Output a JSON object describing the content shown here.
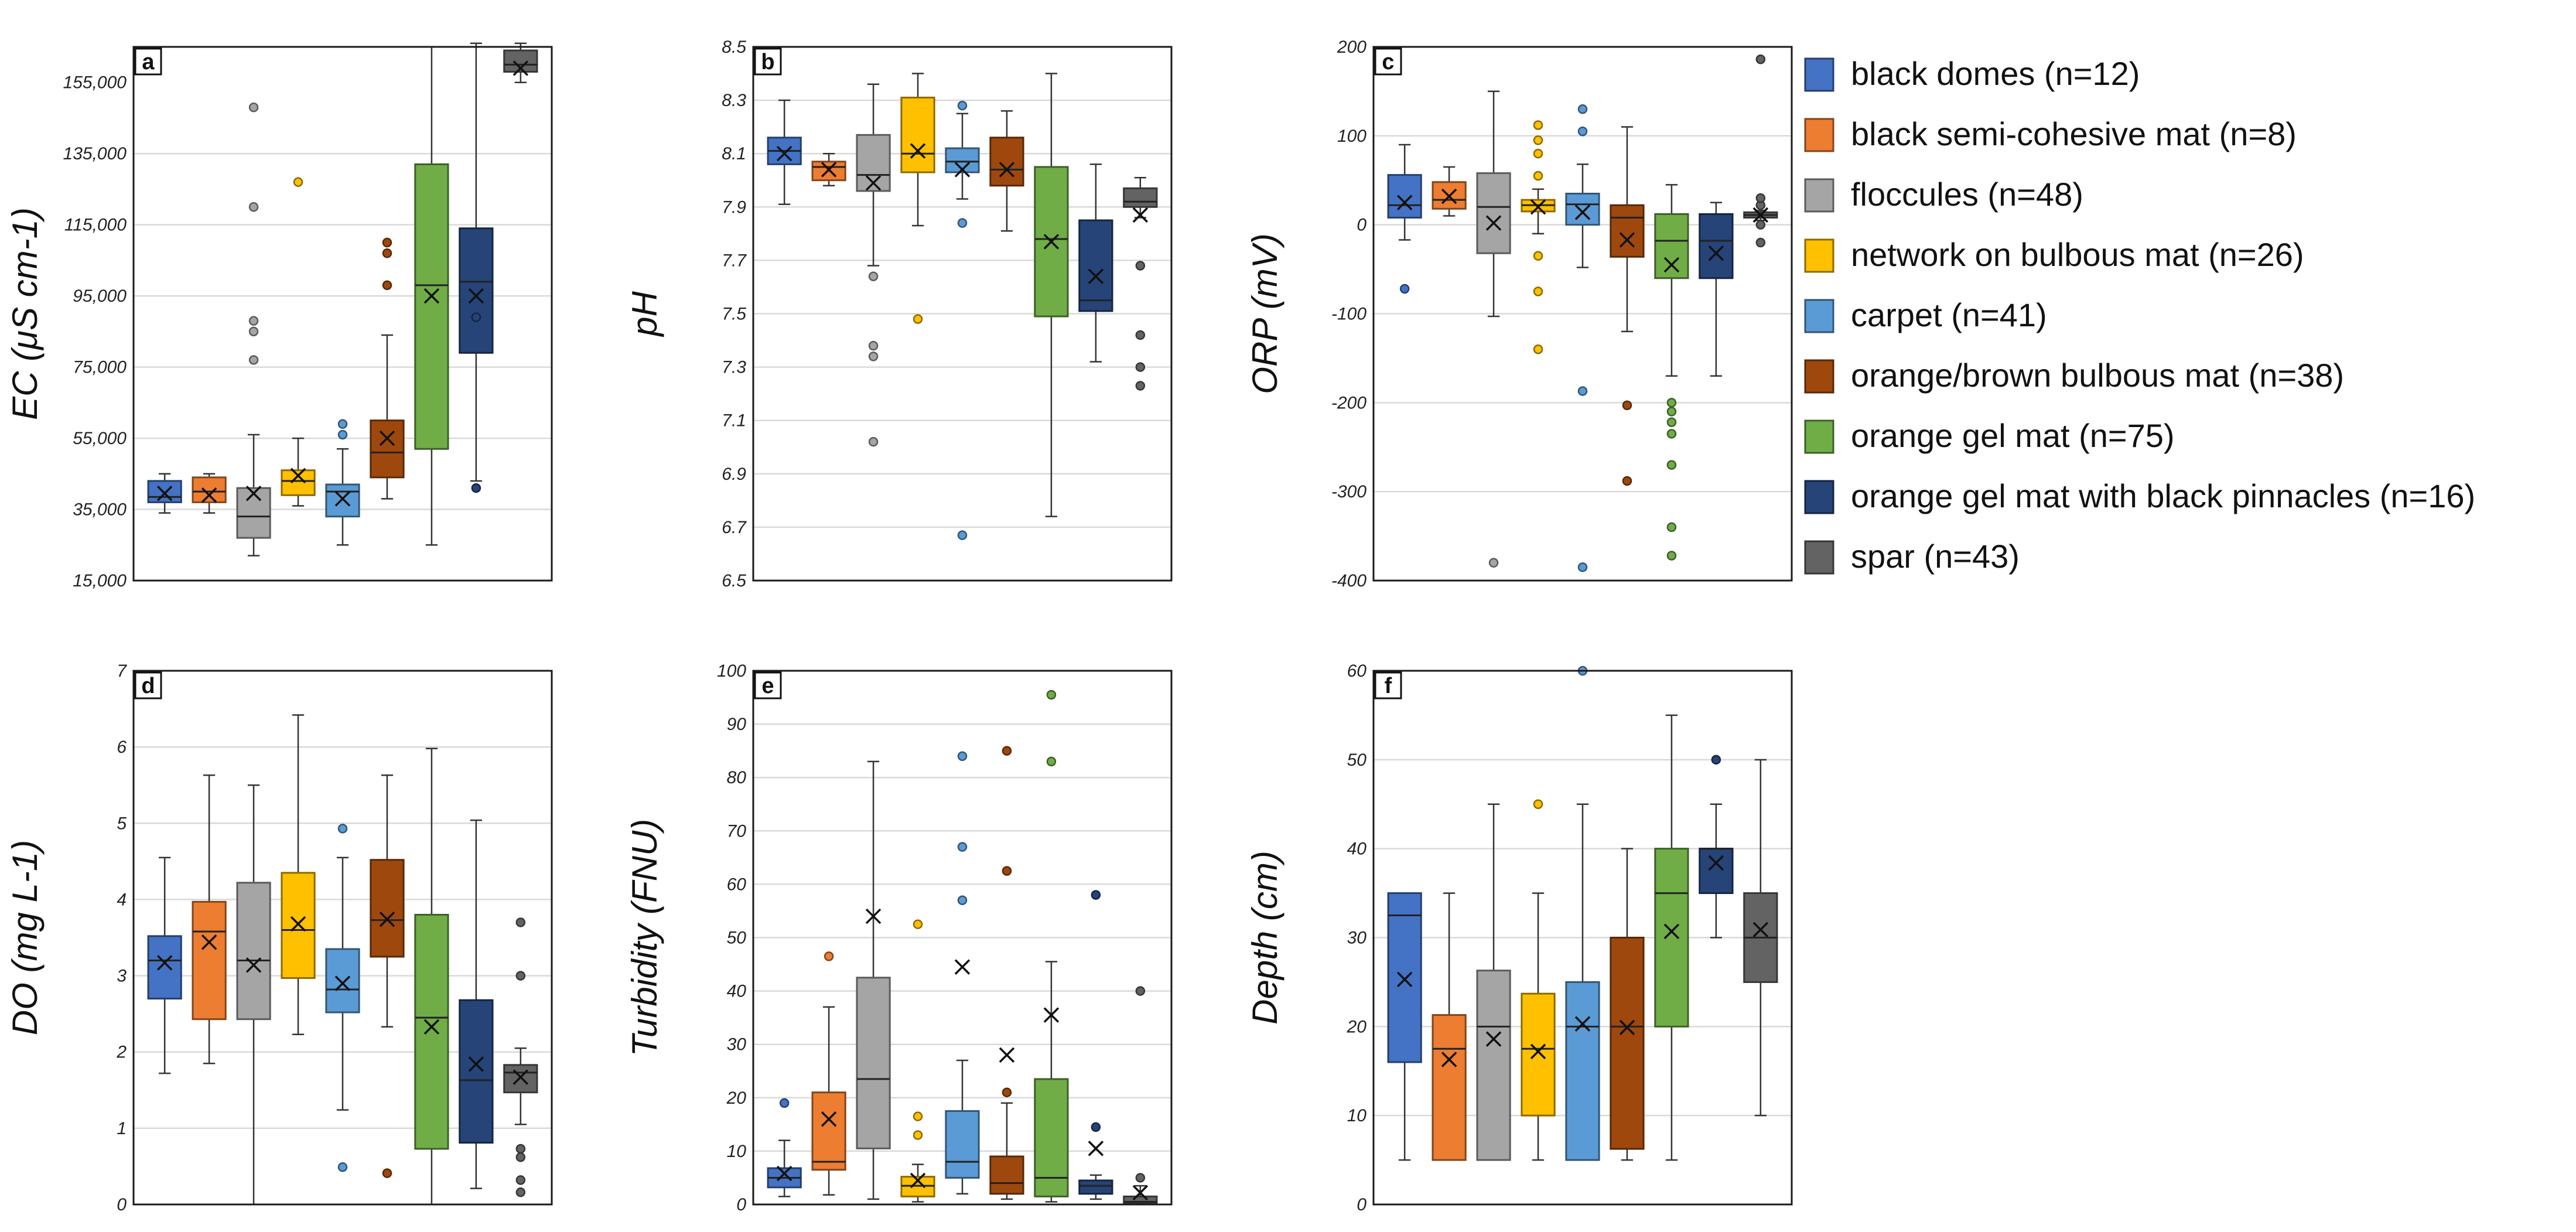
{
  "legend": {
    "items": [
      {
        "label": "black domes (n=12)",
        "color": "#4472C4"
      },
      {
        "label": "black semi-cohesive mat (n=8)",
        "color": "#ED7D31"
      },
      {
        "label": "floccules (n=48)",
        "color": "#A5A5A5"
      },
      {
        "label": "network on bulbous mat (n=26)",
        "color": "#FFC000"
      },
      {
        "label": "carpet (n=41)",
        "color": "#5B9BD5"
      },
      {
        "label": "orange/brown bulbous mat (n=38)",
        "color": "#9E480E"
      },
      {
        "label": "orange gel mat (n=75)",
        "color": "#70AD47"
      },
      {
        "label": "orange gel mat with black pinnacles (n=16)",
        "color": "#264478"
      },
      {
        "label": "spar (n=43)",
        "color": "#636363"
      }
    ]
  },
  "chart_data": [
    {
      "type": "box",
      "panel": "a",
      "ylabel": "EC (μS cm-1)",
      "ylim": [
        15000,
        165000
      ],
      "yticks": [
        15000,
        35000,
        55000,
        75000,
        95000,
        115000,
        135000,
        155000
      ],
      "ytick_labels": [
        "15,000",
        "35,000",
        "55,000",
        "75,000",
        "95,000",
        "115,000",
        "135,000",
        "155,000"
      ],
      "groups": [
        {
          "min": 34000,
          "q1": 37000,
          "median": 38500,
          "q3": 43000,
          "max": 45000,
          "mean": 39500,
          "outliers": []
        },
        {
          "min": 34000,
          "q1": 37000,
          "median": 40000,
          "q3": 44000,
          "max": 45000,
          "mean": 39000,
          "outliers": []
        },
        {
          "min": 22000,
          "q1": 27000,
          "median": 33000,
          "q3": 41000,
          "max": 56000,
          "mean": 39500,
          "outliers": [
            77000,
            85000,
            88000,
            120000,
            148000
          ]
        },
        {
          "min": 36000,
          "q1": 39000,
          "median": 43000,
          "q3": 46000,
          "max": 55000,
          "mean": 44500,
          "outliers": [
            127000
          ]
        },
        {
          "min": 25000,
          "q1": 33000,
          "median": 40000,
          "q3": 42000,
          "max": 52000,
          "mean": 38000,
          "outliers": [
            56000,
            59000
          ]
        },
        {
          "min": 38000,
          "q1": 44000,
          "median": 51000,
          "q3": 60000,
          "max": 84000,
          "mean": 55000,
          "outliers": [
            98000,
            107000,
            110000
          ]
        },
        {
          "min": 25000,
          "q1": 52000,
          "median": 98000,
          "q3": 132000,
          "max": 165000,
          "mean": 95000,
          "outliers": []
        },
        {
          "min": 43000,
          "q1": 79000,
          "median": 99000,
          "q3": 114000,
          "max": 166000,
          "mean": 95000,
          "outliers": [
            41000,
            89000
          ]
        },
        {
          "min": 155000,
          "q1": 158000,
          "median": 160000,
          "q3": 164000,
          "max": 166000,
          "mean": 159000,
          "outliers": []
        }
      ]
    },
    {
      "type": "box",
      "panel": "b",
      "ylabel": "pH",
      "ylim": [
        6.5,
        8.5
      ],
      "yticks": [
        6.5,
        6.7,
        6.9,
        7.1,
        7.3,
        7.5,
        7.7,
        7.9,
        8.1,
        8.3,
        8.5
      ],
      "ytick_labels": [
        "6.5",
        "6.7",
        "6.9",
        "7.1",
        "7.3",
        "7.5",
        "7.7",
        "7.9",
        "8.1",
        "8.3",
        "8.5"
      ],
      "groups": [
        {
          "min": 7.91,
          "q1": 8.06,
          "median": 8.11,
          "q3": 8.16,
          "max": 8.3,
          "mean": 8.1,
          "outliers": []
        },
        {
          "min": 7.98,
          "q1": 8.0,
          "median": 8.05,
          "q3": 8.07,
          "max": 8.1,
          "mean": 8.04,
          "outliers": []
        },
        {
          "min": 7.68,
          "q1": 7.96,
          "median": 8.02,
          "q3": 8.17,
          "max": 8.36,
          "mean": 7.99,
          "outliers": [
            7.02,
            7.34,
            7.38,
            7.64
          ]
        },
        {
          "min": 7.83,
          "q1": 8.03,
          "median": 8.1,
          "q3": 8.31,
          "max": 8.4,
          "mean": 8.11,
          "outliers": [
            7.48
          ]
        },
        {
          "min": 7.93,
          "q1": 8.03,
          "median": 8.07,
          "q3": 8.12,
          "max": 8.25,
          "mean": 8.04,
          "outliers": [
            6.67,
            7.84,
            8.28
          ]
        },
        {
          "min": 7.81,
          "q1": 7.98,
          "median": 8.04,
          "q3": 8.16,
          "max": 8.26,
          "mean": 8.04,
          "outliers": []
        },
        {
          "min": 6.74,
          "q1": 7.49,
          "median": 7.78,
          "q3": 8.05,
          "max": 8.4,
          "mean": 7.77,
          "outliers": []
        },
        {
          "min": 7.32,
          "q1": 7.51,
          "median": 7.55,
          "q3": 7.85,
          "max": 8.06,
          "mean": 7.64,
          "outliers": []
        },
        {
          "min": 7.86,
          "q1": 7.9,
          "median": 7.92,
          "q3": 7.97,
          "max": 8.01,
          "mean": 7.87,
          "outliers": [
            7.23,
            7.3,
            7.42,
            7.68
          ]
        }
      ]
    },
    {
      "type": "box",
      "panel": "c",
      "ylabel": "ORP (mV)",
      "ylim": [
        -400,
        200
      ],
      "yticks": [
        -400,
        -300,
        -200,
        -100,
        0,
        100,
        200
      ],
      "ytick_labels": [
        "-400",
        "-300",
        "-200",
        "-100",
        "0",
        "100",
        "200"
      ],
      "groups": [
        {
          "min": -17,
          "q1": 8,
          "median": 22,
          "q3": 56,
          "max": 90,
          "mean": 25,
          "outliers": [
            -72
          ]
        },
        {
          "min": 10,
          "q1": 18,
          "median": 28,
          "q3": 48,
          "max": 65,
          "mean": 32,
          "outliers": []
        },
        {
          "min": -103,
          "q1": -32,
          "median": 20,
          "q3": 58,
          "max": 150,
          "mean": 2,
          "outliers": [
            -380
          ]
        },
        {
          "min": -10,
          "q1": 15,
          "median": 22,
          "q3": 28,
          "max": 40,
          "mean": 20,
          "outliers": [
            -140,
            -75,
            -35,
            55,
            80,
            95,
            112
          ]
        },
        {
          "min": -48,
          "q1": 0,
          "median": 23,
          "q3": 35,
          "max": 68,
          "mean": 14,
          "outliers": [
            -187,
            -385,
            105,
            130
          ]
        },
        {
          "min": -120,
          "q1": -36,
          "median": 8,
          "q3": 22,
          "max": 110,
          "mean": -17,
          "outliers": [
            -203,
            -288
          ]
        },
        {
          "min": -170,
          "q1": -60,
          "median": -18,
          "q3": 12,
          "max": 45,
          "mean": -45,
          "outliers": [
            -200,
            -210,
            -222,
            -235,
            -270,
            -340,
            -372
          ]
        },
        {
          "min": -170,
          "q1": -60,
          "median": -18,
          "q3": 12,
          "max": 25,
          "mean": -32,
          "outliers": []
        },
        {
          "min": 5,
          "q1": 8,
          "median": 11,
          "q3": 14,
          "max": 16,
          "mean": 11,
          "outliers": [
            -20,
            0,
            22,
            30,
            186
          ]
        }
      ]
    },
    {
      "type": "box",
      "panel": "d",
      "ylabel": "DO (mg L-1)",
      "ylim": [
        0,
        7
      ],
      "yticks": [
        0,
        1,
        2,
        3,
        4,
        5,
        6,
        7
      ],
      "ytick_labels": [
        "0",
        "1",
        "2",
        "3",
        "4",
        "5",
        "6",
        "7"
      ],
      "groups": [
        {
          "min": 1.72,
          "q1": 2.7,
          "median": 3.2,
          "q3": 3.52,
          "max": 4.55,
          "mean": 3.17,
          "outliers": []
        },
        {
          "min": 1.85,
          "q1": 2.43,
          "median": 3.58,
          "q3": 3.97,
          "max": 5.63,
          "mean": 3.44,
          "outliers": []
        },
        {
          "min": 0.0,
          "q1": 2.43,
          "median": 3.2,
          "q3": 4.22,
          "max": 5.5,
          "mean": 3.14,
          "outliers": []
        },
        {
          "min": 2.23,
          "q1": 2.97,
          "median": 3.6,
          "q3": 4.35,
          "max": 6.42,
          "mean": 3.68,
          "outliers": []
        },
        {
          "min": 1.24,
          "q1": 2.52,
          "median": 2.82,
          "q3": 3.35,
          "max": 4.55,
          "mean": 2.9,
          "outliers": [
            0.49,
            4.93
          ]
        },
        {
          "min": 2.33,
          "q1": 3.25,
          "median": 3.73,
          "q3": 4.52,
          "max": 5.63,
          "mean": 3.74,
          "outliers": [
            0.41
          ]
        },
        {
          "min": 0.0,
          "q1": 0.73,
          "median": 2.45,
          "q3": 3.8,
          "max": 5.98,
          "mean": 2.33,
          "outliers": []
        },
        {
          "min": 0.21,
          "q1": 0.81,
          "median": 1.63,
          "q3": 2.68,
          "max": 5.04,
          "mean": 1.84,
          "outliers": []
        },
        {
          "min": 1.05,
          "q1": 1.47,
          "median": 1.73,
          "q3": 1.83,
          "max": 2.05,
          "mean": 1.67,
          "outliers": [
            0.16,
            0.32,
            0.62,
            0.73,
            3.0,
            3.7
          ]
        }
      ]
    },
    {
      "type": "box",
      "panel": "e",
      "ylabel": "Turbidity (FNU)",
      "ylim": [
        0,
        100
      ],
      "yticks": [
        0,
        10,
        20,
        30,
        40,
        50,
        60,
        70,
        80,
        90,
        100
      ],
      "ytick_labels": [
        "0",
        "10",
        "20",
        "30",
        "40",
        "50",
        "60",
        "70",
        "80",
        "90",
        "100"
      ],
      "groups": [
        {
          "min": 1.5,
          "q1": 3.2,
          "median": 5.0,
          "q3": 6.8,
          "max": 12.0,
          "mean": 5.8,
          "outliers": [
            19
          ]
        },
        {
          "min": 1.8,
          "q1": 6.5,
          "median": 8.0,
          "q3": 21.0,
          "max": 37.0,
          "mean": 16.0,
          "outliers": [
            46.5
          ]
        },
        {
          "min": 1.0,
          "q1": 10.5,
          "median": 23.5,
          "q3": 42.5,
          "max": 83.0,
          "mean": 54.0,
          "outliers": []
        },
        {
          "min": 0.5,
          "q1": 1.5,
          "median": 3.5,
          "q3": 5.2,
          "max": 7.5,
          "mean": 4.5,
          "outliers": [
            13,
            16.5,
            52.5
          ]
        },
        {
          "min": 2.0,
          "q1": 5.0,
          "median": 8.0,
          "q3": 17.5,
          "max": 27.0,
          "mean": 44.5,
          "outliers": [
            57,
            67,
            84
          ]
        },
        {
          "min": 1.0,
          "q1": 2.0,
          "median": 4.0,
          "q3": 9.0,
          "max": 19.0,
          "mean": 28.0,
          "outliers": [
            21,
            62.5,
            85
          ]
        },
        {
          "min": 0.5,
          "q1": 1.5,
          "median": 5.0,
          "q3": 23.5,
          "max": 45.5,
          "mean": 35.5,
          "outliers": [
            83,
            95.5
          ]
        },
        {
          "min": 1.0,
          "q1": 2.0,
          "median": 3.5,
          "q3": 4.5,
          "max": 5.5,
          "mean": 10.5,
          "outliers": [
            14.5,
            58
          ]
        },
        {
          "min": 0.2,
          "q1": 0.3,
          "median": 0.5,
          "q3": 1.5,
          "max": 3.5,
          "mean": 2.2,
          "outliers": [
            5.0,
            40
          ]
        }
      ]
    },
    {
      "type": "box",
      "panel": "f",
      "ylabel": "Depth (cm)",
      "ylim": [
        0,
        60
      ],
      "yticks": [
        0,
        10,
        20,
        30,
        40,
        50,
        60
      ],
      "ytick_labels": [
        "0",
        "10",
        "20",
        "30",
        "40",
        "50",
        "60"
      ],
      "groups": [
        {
          "min": 5,
          "q1": 16,
          "median": 32.5,
          "q3": 35,
          "max": 35,
          "mean": 25.3,
          "outliers": []
        },
        {
          "min": 5,
          "q1": 5,
          "median": 17.5,
          "q3": 21.3,
          "max": 35,
          "mean": 16.3,
          "outliers": []
        },
        {
          "min": 5,
          "q1": 5,
          "median": 20,
          "q3": 26.3,
          "max": 45,
          "mean": 18.6,
          "outliers": []
        },
        {
          "min": 5,
          "q1": 10,
          "median": 17.5,
          "q3": 23.7,
          "max": 35,
          "mean": 17.2,
          "outliers": [
            45
          ]
        },
        {
          "min": 5,
          "q1": 5,
          "median": 20,
          "q3": 25,
          "max": 45,
          "mean": 20.3,
          "outliers": [
            60
          ]
        },
        {
          "min": 5,
          "q1": 6.25,
          "median": 20,
          "q3": 30,
          "max": 40,
          "mean": 19.9,
          "outliers": []
        },
        {
          "min": 5,
          "q1": 20,
          "median": 35,
          "q3": 40,
          "max": 55,
          "mean": 30.7,
          "outliers": []
        },
        {
          "min": 30,
          "q1": 35,
          "median": 40,
          "q3": 40,
          "max": 45,
          "mean": 38.4,
          "outliers": [
            50
          ]
        },
        {
          "min": 10,
          "q1": 25,
          "median": 30,
          "q3": 35,
          "max": 50,
          "mean": 30.9,
          "outliers": []
        }
      ]
    }
  ]
}
